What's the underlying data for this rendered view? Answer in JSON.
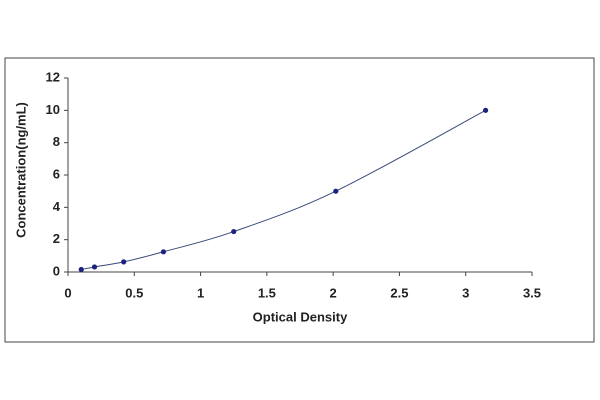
{
  "chart_data": {
    "type": "scatter",
    "x_label": "Optical Density",
    "y_label": "Concentration(ng/mL)",
    "x": [
      0.1,
      0.2,
      0.42,
      0.72,
      1.25,
      2.02,
      3.15
    ],
    "series": [
      {
        "color": "#1a237e",
        "line_color": "#3a4a7a",
        "values": [
          0.156,
          0.312,
          0.625,
          1.25,
          2.5,
          5,
          10
        ]
      }
    ],
    "xlim": [
      0,
      3.5
    ],
    "xticks": [
      0,
      0.5,
      1,
      1.5,
      2,
      2.5,
      3,
      3.5
    ],
    "ylim": [
      0,
      12
    ],
    "yticks": [
      0,
      2,
      4,
      6,
      8,
      10,
      12
    ],
    "grid": false,
    "fitted_curve": true
  }
}
